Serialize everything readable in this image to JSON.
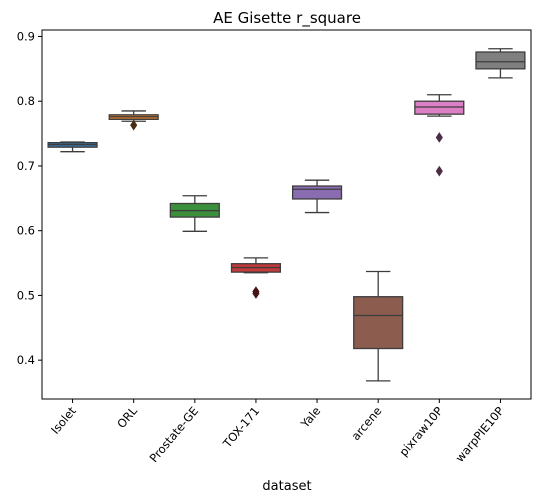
{
  "chart_data": {
    "type": "box",
    "title": "AE Gisette r_square",
    "xlabel": "dataset",
    "ylabel": "",
    "ylim": [
      0.34,
      0.91
    ],
    "yticks": [
      0.4,
      0.5,
      0.6,
      0.7,
      0.8,
      0.9
    ],
    "ytick_labels": [
      "0.4",
      "0.5",
      "0.6",
      "0.7",
      "0.8",
      "0.9"
    ],
    "grid": false,
    "categories": [
      "Isolet",
      "ORL",
      "Prostate-GE",
      "TOX-171",
      "Yale",
      "arcene",
      "pixraw10P",
      "warpPIE10P"
    ],
    "boxes": [
      {
        "category": "Isolet",
        "whisker_low": 0.722,
        "q1": 0.729,
        "median": 0.733,
        "q3": 0.736,
        "whisker_high": 0.737,
        "outliers": [],
        "color": "#3a75a8"
      },
      {
        "category": "ORL",
        "whisker_low": 0.769,
        "q1": 0.772,
        "median": 0.776,
        "q3": 0.779,
        "whisker_high": 0.785,
        "outliers": [
          0.763
        ],
        "color": "#d47d2f"
      },
      {
        "category": "Prostate-GE",
        "whisker_low": 0.599,
        "q1": 0.621,
        "median": 0.631,
        "q3": 0.642,
        "whisker_high": 0.654,
        "outliers": [],
        "color": "#3c8f3c"
      },
      {
        "category": "TOX-171",
        "whisker_low": 0.535,
        "q1": 0.536,
        "median": 0.543,
        "q3": 0.549,
        "whisker_high": 0.558,
        "outliers": [
          0.506,
          0.503
        ],
        "color": "#c43a3a"
      },
      {
        "category": "Yale",
        "whisker_low": 0.628,
        "q1": 0.649,
        "median": 0.664,
        "q3": 0.669,
        "whisker_high": 0.678,
        "outliers": [],
        "color": "#8a6cb1"
      },
      {
        "category": "arcene",
        "whisker_low": 0.368,
        "q1": 0.418,
        "median": 0.469,
        "q3": 0.498,
        "whisker_high": 0.537,
        "outliers": [],
        "color": "#8c5d4f"
      },
      {
        "category": "pixraw10P",
        "whisker_low": 0.777,
        "q1": 0.78,
        "median": 0.791,
        "q3": 0.8,
        "whisker_high": 0.81,
        "outliers": [
          0.744,
          0.692
        ],
        "color": "#dd7fc5"
      },
      {
        "category": "warpPIE10P",
        "whisker_low": 0.836,
        "q1": 0.85,
        "median": 0.861,
        "q3": 0.876,
        "whisker_high": 0.881,
        "outliers": [],
        "color": "#7f7f7f"
      }
    ]
  }
}
